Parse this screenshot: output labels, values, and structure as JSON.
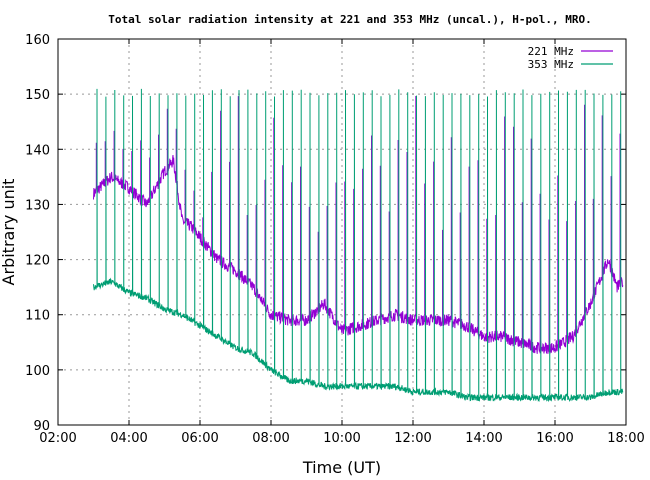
{
  "chart_data": {
    "type": "line",
    "title": "Total solar radiation intensity at 221 and 353 MHz (uncal.), H-pol., MRO.",
    "xlabel": "Time (UT)",
    "ylabel": "Arbitrary unit",
    "xlim": [
      "02:00",
      "18:00"
    ],
    "ylim": [
      90,
      160
    ],
    "x_ticks": [
      "02:00",
      "04:00",
      "06:00",
      "08:00",
      "10:00",
      "12:00",
      "14:00",
      "16:00",
      "18:00"
    ],
    "y_ticks": [
      90,
      100,
      110,
      120,
      130,
      140,
      150,
      160
    ],
    "grid": true,
    "legend_position": "top-right",
    "series": [
      {
        "name": "221 MHz",
        "color": "#9400d3",
        "x": [
          "03:00",
          "03:30",
          "04:00",
          "04:30",
          "05:00",
          "05:15",
          "05:30",
          "05:45",
          "06:00",
          "06:30",
          "07:00",
          "07:30",
          "08:00",
          "08:30",
          "09:00",
          "09:30",
          "10:00",
          "10:30",
          "11:00",
          "11:30",
          "12:00",
          "12:30",
          "13:00",
          "13:30",
          "14:00",
          "14:30",
          "15:00",
          "15:30",
          "16:00",
          "16:30",
          "17:00",
          "17:30",
          "17:45",
          "17:55"
        ],
        "values": [
          132,
          135,
          133,
          130,
          136,
          138,
          127,
          126,
          124,
          120,
          118,
          115,
          110,
          109,
          109,
          112,
          107,
          108,
          109,
          110,
          109,
          109,
          109,
          108,
          106,
          106,
          105,
          104,
          104,
          106,
          112,
          120,
          115,
          116
        ],
        "spike_top": 151
      },
      {
        "name": "353 MHz",
        "color": "#009e73",
        "x": [
          "03:00",
          "03:30",
          "04:00",
          "04:30",
          "05:00",
          "05:30",
          "06:00",
          "06:30",
          "07:00",
          "07:30",
          "08:00",
          "08:30",
          "09:00",
          "09:30",
          "10:00",
          "10:30",
          "11:00",
          "11:30",
          "12:00",
          "12:30",
          "13:00",
          "13:30",
          "14:00",
          "14:30",
          "15:00",
          "15:30",
          "16:00",
          "16:30",
          "17:00",
          "17:30",
          "17:55"
        ],
        "values": [
          115,
          116,
          114,
          113,
          111,
          110,
          108,
          106,
          104,
          103,
          100,
          98,
          98,
          97,
          97,
          97,
          97,
          97,
          96,
          96,
          96,
          95,
          95,
          95,
          95,
          95,
          95,
          95,
          95,
          96,
          96
        ],
        "spike_top": 151
      }
    ]
  }
}
